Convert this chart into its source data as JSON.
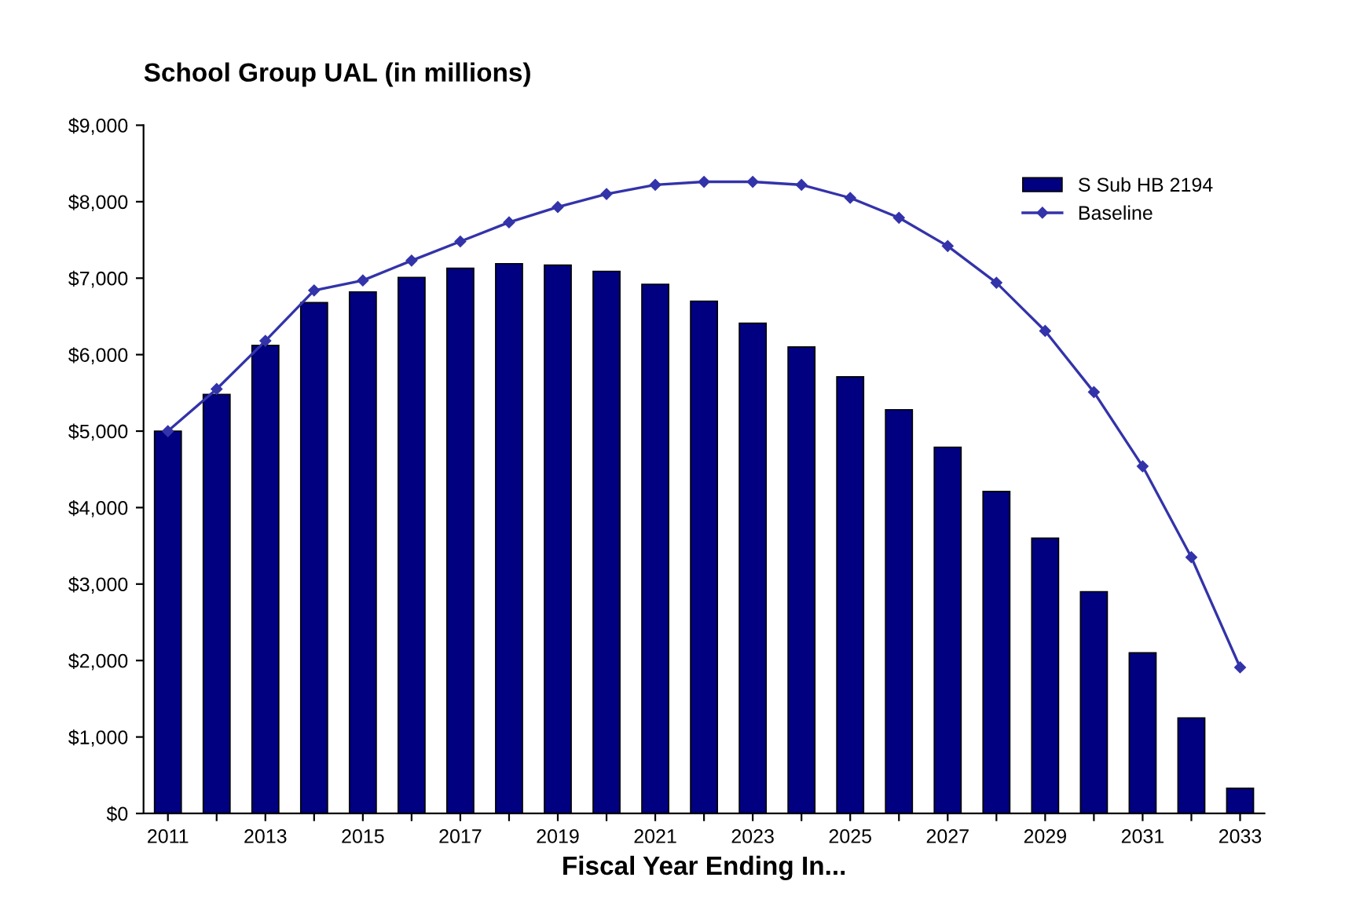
{
  "chart_data": {
    "type": "bar",
    "title": "School Group UAL (in millions)",
    "xlabel": "Fiscal Year Ending In...",
    "categories": [
      "2011",
      null,
      "2013",
      null,
      "2015",
      null,
      "2017",
      null,
      "2019",
      null,
      "2021",
      null,
      "2023",
      null,
      "2025",
      null,
      "2027",
      null,
      "2029",
      null,
      "2031",
      null,
      "2033"
    ],
    "series": [
      {
        "name": "S Sub HB 2194",
        "color": "#000080",
        "values": [
          5000,
          5480,
          6120,
          6680,
          6820,
          7010,
          7130,
          7190,
          7170,
          7090,
          6920,
          6700,
          6410,
          6100,
          5710,
          5280,
          4790,
          4210,
          3600,
          2900,
          2100,
          1250,
          330
        ]
      },
      {
        "name": "Baseline",
        "type": "line",
        "color": "#3333aa",
        "marker": "diamond",
        "values": [
          5000,
          5550,
          6180,
          6840,
          6970,
          7230,
          7480,
          7730,
          7930,
          8100,
          8220,
          8260,
          8260,
          8220,
          8050,
          7790,
          7420,
          6940,
          6310,
          5510,
          4540,
          3350,
          1910
        ]
      }
    ],
    "ylim": [
      0,
      9000
    ],
    "yticks": [
      {
        "value": 0,
        "label": "$0"
      },
      {
        "value": 1000,
        "label": "$1,000"
      },
      {
        "value": 2000,
        "label": "$2,000"
      },
      {
        "value": 3000,
        "label": "$3,000"
      },
      {
        "value": 4000,
        "label": "$4,000"
      },
      {
        "value": 5000,
        "label": "$5,000"
      },
      {
        "value": 6000,
        "label": "$6,000"
      },
      {
        "value": 7000,
        "label": "$7,000"
      },
      {
        "value": 8000,
        "label": "$8,000"
      },
      {
        "value": 9000,
        "label": "$9,000"
      }
    ],
    "grid": false,
    "legend": "top right"
  }
}
